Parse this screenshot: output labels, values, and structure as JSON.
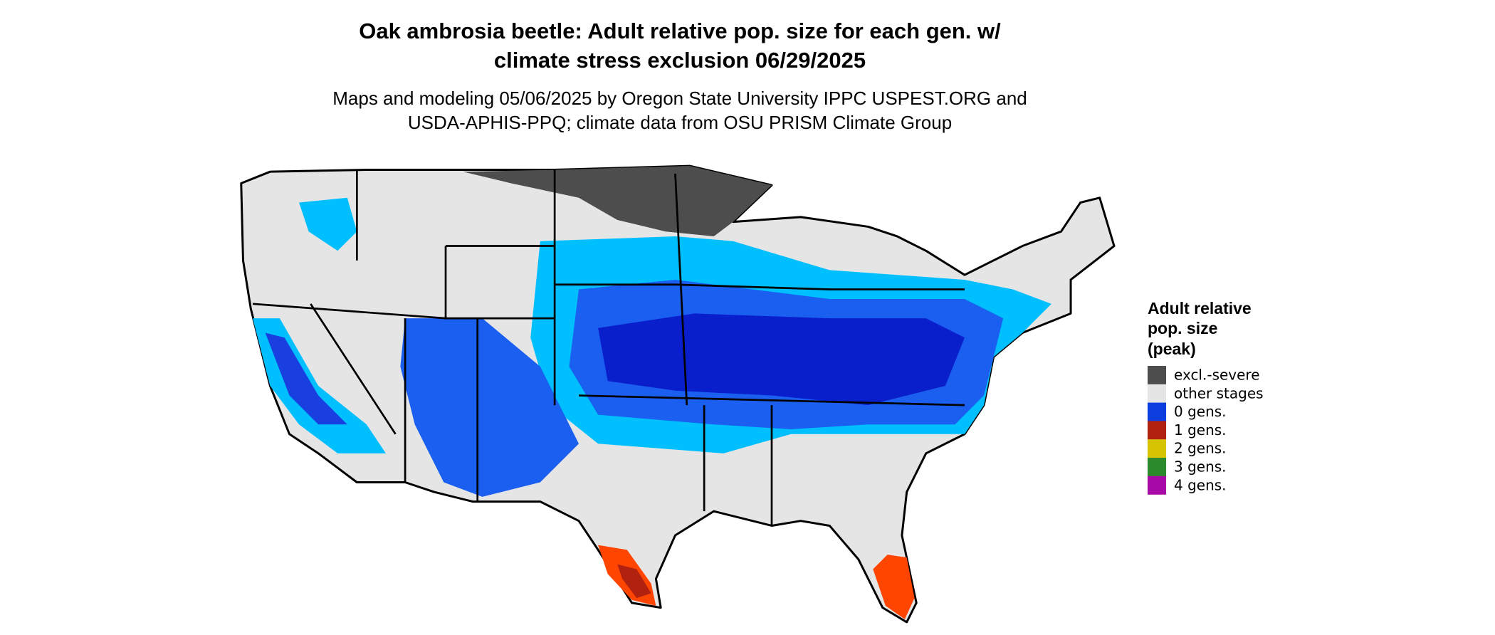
{
  "title": [
    "Oak ambrosia beetle: Adult relative pop. size for each gen. w/",
    "climate stress exclusion 06/29/2025"
  ],
  "subtitle": [
    "Maps and modeling 05/06/2025 by Oregon State University IPPC USPEST.ORG and",
    "USDA-APHIS-PPQ; climate data from OSU PRISM Climate Group"
  ],
  "legend": {
    "title": [
      "Adult relative",
      "pop. size",
      "(peak)"
    ],
    "items": [
      {
        "label": "excl.-severe",
        "color": "#4d4d4d"
      },
      {
        "label": "other stages",
        "color": "#e5e5e5"
      },
      {
        "label": "0 gens.",
        "color": "#0d3fe0"
      },
      {
        "label": "1 gens.",
        "color": "#b0220f"
      },
      {
        "label": "2 gens.",
        "color": "#d6c400"
      },
      {
        "label": "3 gens.",
        "color": "#2b8a2b"
      },
      {
        "label": "4 gens.",
        "color": "#a80aa8"
      }
    ]
  }
}
